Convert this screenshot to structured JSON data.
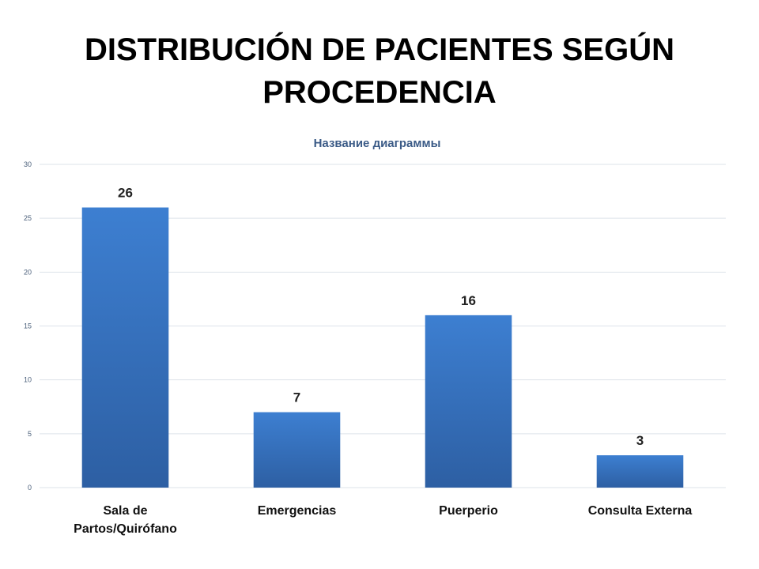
{
  "slide": {
    "title": "DISTRIBUCIÓN DE PACIENTES SEGÚN PROCEDENCIA"
  },
  "colors": {
    "bar_top": "#3d7fd1",
    "bar_bottom": "#2d5fa3",
    "grid": "#dde3ea",
    "axis_text": "#4a5f7a",
    "chart_title": "#3a5a86"
  },
  "chart_data": {
    "type": "bar",
    "title": "Название диаграммы",
    "categories": [
      "Sala de Partos/Quirófano",
      "Emergencias",
      "Puerperio",
      "Consulta Externa"
    ],
    "category_lines": [
      [
        "Sala de",
        "Partos/Quirófano"
      ],
      [
        "Emergencias"
      ],
      [
        "Puerperio"
      ],
      [
        "Consulta Externa"
      ]
    ],
    "values": [
      26,
      7,
      16,
      3
    ],
    "yticks": [
      0,
      5,
      10,
      15,
      20,
      25,
      30
    ],
    "ylim": [
      0,
      30
    ],
    "grid": true,
    "data_labels": true,
    "xlabel": "",
    "ylabel": ""
  }
}
